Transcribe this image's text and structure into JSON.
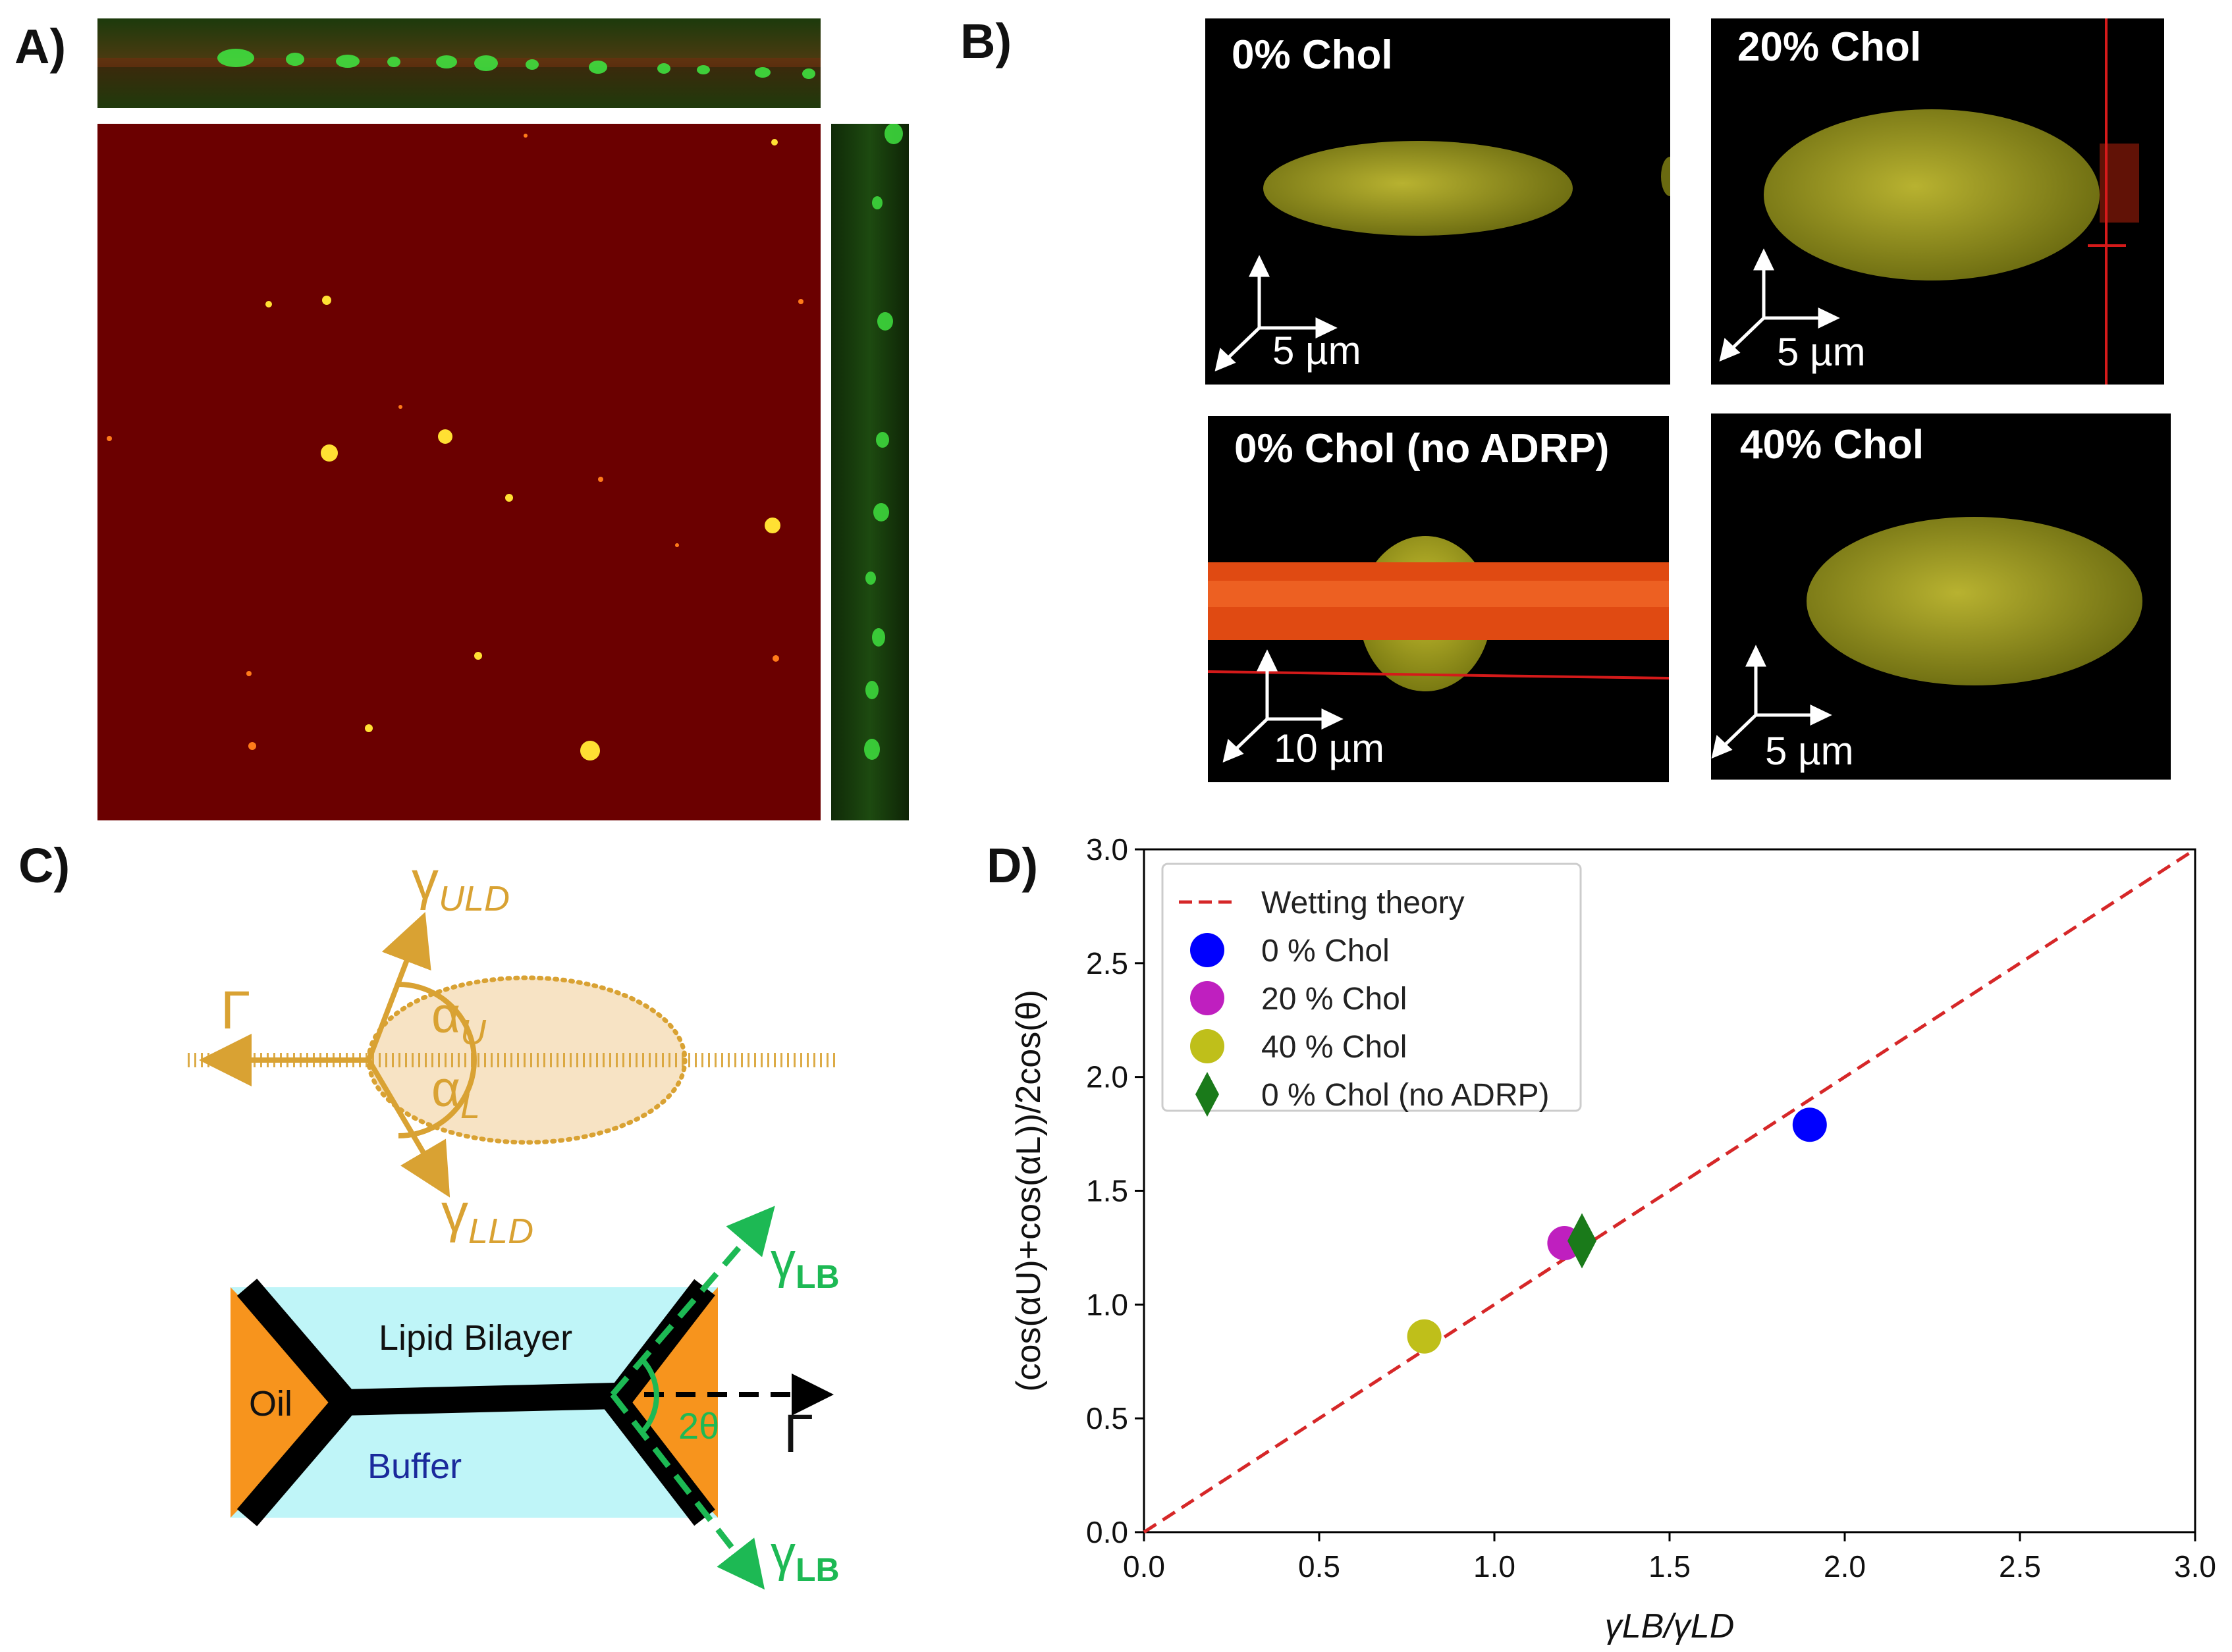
{
  "panel_labels": {
    "a": "A)",
    "b": "B)",
    "c": "C)",
    "d": "D)"
  },
  "panel_b": {
    "tiles": [
      {
        "title": "0% Chol",
        "scale": "5 µm"
      },
      {
        "title": "20% Chol",
        "scale": "5 µm"
      },
      {
        "title": "0% Chol (no ADRP)",
        "scale": "10 µm"
      },
      {
        "title": "40% Chol",
        "scale": "5 µm"
      }
    ]
  },
  "panel_c": {
    "gamma_uld": "γ",
    "gamma_uld_sub": "ULD",
    "gamma_lld": "γ",
    "gamma_lld_sub": "LLD",
    "tension": "Γ",
    "alpha_u": "α",
    "alpha_u_sub": "U",
    "alpha_l": "α",
    "alpha_l_sub": "L",
    "lipid_bilayer": "Lipid Bilayer",
    "oil": "Oil",
    "buffer": "Buffer",
    "gamma_lb": "γ",
    "gamma_lb_sub": "LB",
    "gamma_lb2": "γ",
    "gamma_lb2_sub": "LB",
    "angle": "2θ",
    "tension2": "Γ"
  },
  "colors": {
    "gold": "#d9a233",
    "gold_fill": "#f7e3c4",
    "cyan": "#bff5f8",
    "orange": "#f7941d",
    "green_dash": "#1db954",
    "theory": "#d62728"
  },
  "chart_data": {
    "type": "scatter",
    "xlabel": "γLB/γLD",
    "ylabel": "(cos(αU)+cos(αL))/2cos(θ)",
    "xlim": [
      0.0,
      3.0
    ],
    "ylim": [
      0.0,
      3.0
    ],
    "xticks": [
      "0.0",
      "0.5",
      "1.0",
      "1.5",
      "2.0",
      "2.5",
      "3.0"
    ],
    "yticks": [
      "0.0",
      "0.5",
      "1.0",
      "1.5",
      "2.0",
      "2.5",
      "3.0"
    ],
    "theory": {
      "name": "Wetting theory",
      "x": [
        0.0,
        3.0
      ],
      "y": [
        0.0,
        3.0
      ],
      "color": "#d62728"
    },
    "series": [
      {
        "name": "0 % Chol",
        "x": 1.9,
        "y": 1.79,
        "color": "#0000ff",
        "marker": "circle"
      },
      {
        "name": "20 % Chol",
        "x": 1.2,
        "y": 1.27,
        "color": "#bf1fbf",
        "marker": "circle"
      },
      {
        "name": "40 % Chol",
        "x": 0.8,
        "y": 0.86,
        "color": "#bfbf1a",
        "marker": "circle"
      },
      {
        "name": "0 % Chol (no ADRP)",
        "x": 1.25,
        "y": 1.28,
        "color": "#1a7a1a",
        "marker": "diamond"
      }
    ],
    "legend_position": "top-left"
  }
}
